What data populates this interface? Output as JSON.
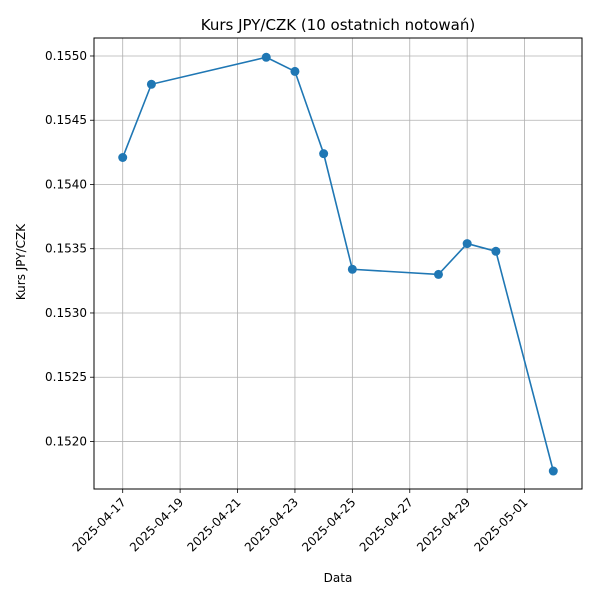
{
  "chart_data": {
    "type": "line",
    "title": "Kurs JPY/CZK (10 ostatnich notowań)",
    "xlabel": "Data",
    "ylabel": "Kurs JPY/CZK",
    "x": [
      "2025-04-17",
      "2025-04-18",
      "2025-04-22",
      "2025-04-23",
      "2025-04-24",
      "2025-04-25",
      "2025-04-28",
      "2025-04-29",
      "2025-04-30",
      "2025-05-02"
    ],
    "series": [
      {
        "values": [
          0.15421,
          0.15478,
          0.15499,
          0.15488,
          0.15424,
          0.15334,
          0.1533,
          0.15354,
          0.15348,
          0.15177
        ]
      }
    ],
    "x_ticks": [
      "2025-04-17",
      "2025-04-19",
      "2025-04-21",
      "2025-04-23",
      "2025-04-25",
      "2025-04-27",
      "2025-04-29",
      "2025-05-01"
    ],
    "y_ticks": [
      "0.1520",
      "0.1525",
      "0.1530",
      "0.1535",
      "0.1540",
      "0.1545",
      "0.1550"
    ],
    "xlim": [
      "2025-04-16",
      "2025-05-03"
    ],
    "ylim": [
      0.15163,
      0.15514
    ],
    "grid": true,
    "line_color": "#1f77b4",
    "marker": "circle"
  }
}
